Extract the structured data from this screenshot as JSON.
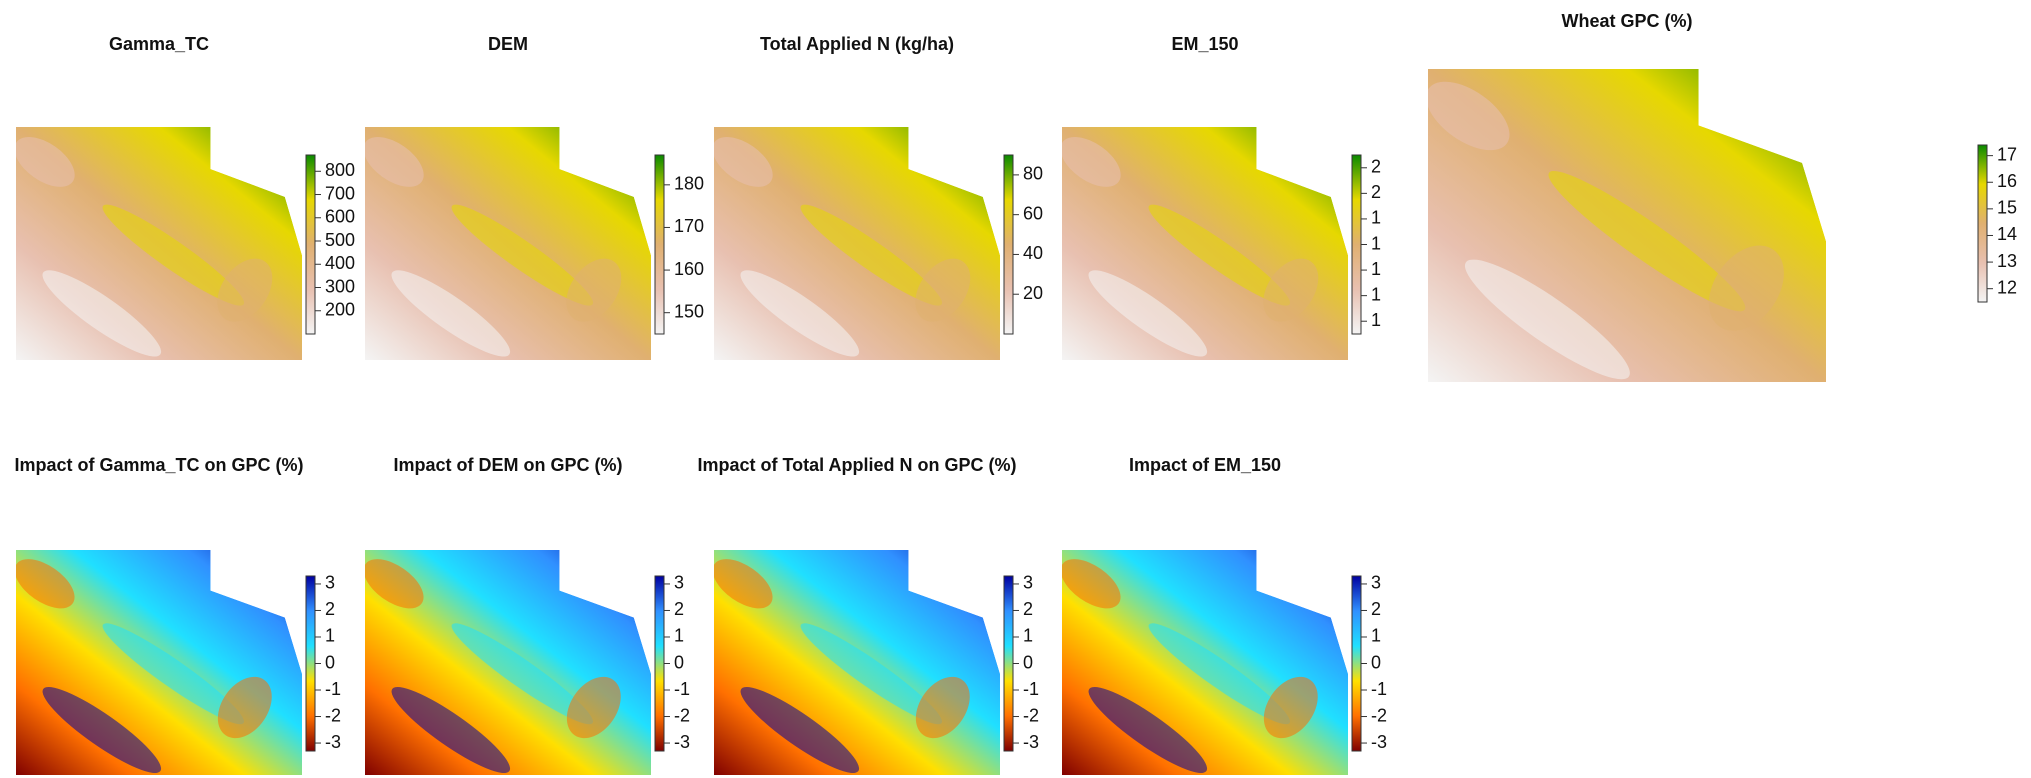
{
  "chart_data": [
    {
      "type": "raster",
      "title": "Gamma_TC",
      "colors": [
        "#f4f4f4",
        "#e8c0b0",
        "#e0b070",
        "#e6d800",
        "#0a8a00"
      ],
      "ylim": [
        100,
        870
      ],
      "yticks": [
        200,
        300,
        400,
        500,
        600,
        700,
        800
      ]
    },
    {
      "type": "raster",
      "title": "DEM",
      "colors": [
        "#f4f4f4",
        "#e8c0b0",
        "#e0b070",
        "#e6d800",
        "#0a8a00"
      ],
      "ylim": [
        145,
        187
      ],
      "yticks": [
        150,
        160,
        170,
        180
      ]
    },
    {
      "type": "raster",
      "title": "Total Applied N (kg/ha)",
      "colors": [
        "#f4f4f4",
        "#e8c0b0",
        "#e0b070",
        "#e6d800",
        "#0a8a00"
      ],
      "ylim": [
        0,
        90
      ],
      "yticks": [
        20,
        40,
        60,
        80
      ]
    },
    {
      "type": "raster",
      "title": "EM_150",
      "colors": [
        "#f4f4f4",
        "#e8c0b0",
        "#e0b070",
        "#e6d800",
        "#0a8a00"
      ],
      "ylim": [
        0.9,
        2.3
      ],
      "yticks": [
        {
          "value": 1.0,
          "label": "1"
        },
        {
          "value": 1.2,
          "label": "1"
        },
        {
          "value": 1.4,
          "label": "1"
        },
        {
          "value": 1.6,
          "label": "1"
        },
        {
          "value": 1.8,
          "label": "1"
        },
        {
          "value": 2.0,
          "label": "2"
        },
        {
          "value": 2.2,
          "label": "2"
        }
      ]
    },
    {
      "type": "raster",
      "title": "Wheat GPC (%)",
      "colors": [
        "#f4f4f4",
        "#e8c0b0",
        "#e0b070",
        "#e6d800",
        "#0a8a00"
      ],
      "ylim": [
        11.5,
        17.4
      ],
      "yticks": [
        12,
        13,
        14,
        15,
        16,
        17
      ]
    },
    {
      "type": "raster",
      "title": "Impact of Gamma_TC on GPC (%)",
      "colors": [
        "#800000",
        "#ff7000",
        "#ffe000",
        "#20e0ff",
        "#3090ff",
        "#0000a0"
      ],
      "ylim": [
        -3.3,
        3.3
      ],
      "yticks": [
        -3,
        -2,
        -1,
        0,
        1,
        2,
        3
      ]
    },
    {
      "type": "raster",
      "title": "Impact of DEM on GPC (%)",
      "colors": [
        "#800000",
        "#ff7000",
        "#ffe000",
        "#20e0ff",
        "#3090ff",
        "#0000a0"
      ],
      "ylim": [
        -3.3,
        3.3
      ],
      "yticks": [
        -3,
        -2,
        -1,
        0,
        1,
        2,
        3
      ]
    },
    {
      "type": "raster",
      "title": "Impact of Total Applied N on GPC (%)",
      "colors": [
        "#800000",
        "#ff7000",
        "#ffe000",
        "#20e0ff",
        "#3090ff",
        "#0000a0"
      ],
      "ylim": [
        -3.3,
        3.3
      ],
      "yticks": [
        -3,
        -2,
        -1,
        0,
        1,
        2,
        3
      ]
    },
    {
      "type": "raster",
      "title": "Impact of EM_150",
      "colors": [
        "#800000",
        "#ff7000",
        "#ffe000",
        "#20e0ff",
        "#3090ff",
        "#0000a0"
      ],
      "ylim": [
        -3.3,
        3.3
      ],
      "yticks": [
        -3,
        -2,
        -1,
        0,
        1,
        2,
        3
      ]
    }
  ]
}
